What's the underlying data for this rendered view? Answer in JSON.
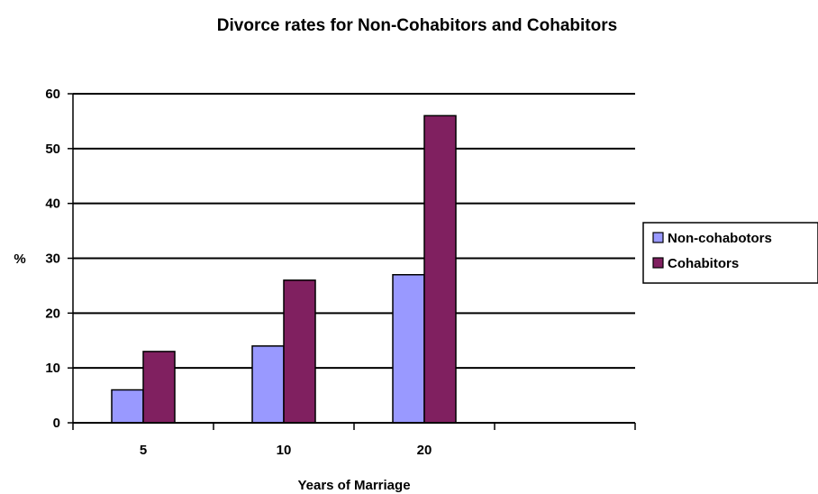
{
  "chart_data": {
    "type": "bar",
    "title": "Divorce rates for Non-Cohabitors and Cohabitors",
    "xlabel": "Years of Marriage",
    "ylabel": "%",
    "categories": [
      "5",
      "10",
      "20",
      ""
    ],
    "series": [
      {
        "name": "Non-cohabotors",
        "color": "#9999ff",
        "values": [
          6,
          14,
          27,
          null
        ]
      },
      {
        "name": "Cohabitors",
        "color": "#802060",
        "values": [
          13,
          26,
          56,
          null
        ]
      }
    ],
    "ylim": [
      0,
      60
    ],
    "yticks": [
      0,
      10,
      20,
      30,
      40,
      50,
      60
    ],
    "grid": true,
    "legend": "right"
  }
}
